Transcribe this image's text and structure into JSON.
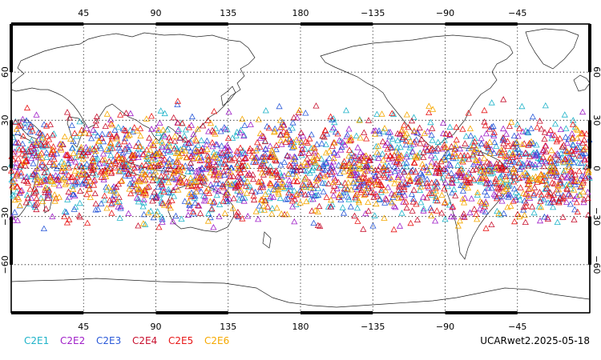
{
  "map": {
    "top_lon_labels": [
      "45",
      "90",
      "135",
      "180",
      "−135",
      "−90",
      "−45"
    ],
    "bottom_lon_labels": [
      "45",
      "90",
      "135",
      "180",
      "−135",
      "−90",
      "−45"
    ],
    "lat_labels": [
      "60",
      "30",
      "0",
      "−30",
      "−60"
    ],
    "lon_range": [
      0,
      360
    ],
    "lat_range": [
      -90,
      90
    ],
    "grid": "dotted",
    "marker": "triangle"
  },
  "legend": [
    {
      "label": "C2E1",
      "color": "#1fb3c9"
    },
    {
      "label": "C2E2",
      "color": "#a020c8"
    },
    {
      "label": "C2E3",
      "color": "#2a59d8"
    },
    {
      "label": "C2E4",
      "color": "#c8102e"
    },
    {
      "label": "C2E5",
      "color": "#e81818"
    },
    {
      "label": "C2E6",
      "color": "#f5a800"
    }
  ],
  "footer": {
    "label": "UCARwet2.2025-05-18"
  },
  "observations": {
    "lat_extent": [
      -45,
      45
    ],
    "density": "dense"
  }
}
